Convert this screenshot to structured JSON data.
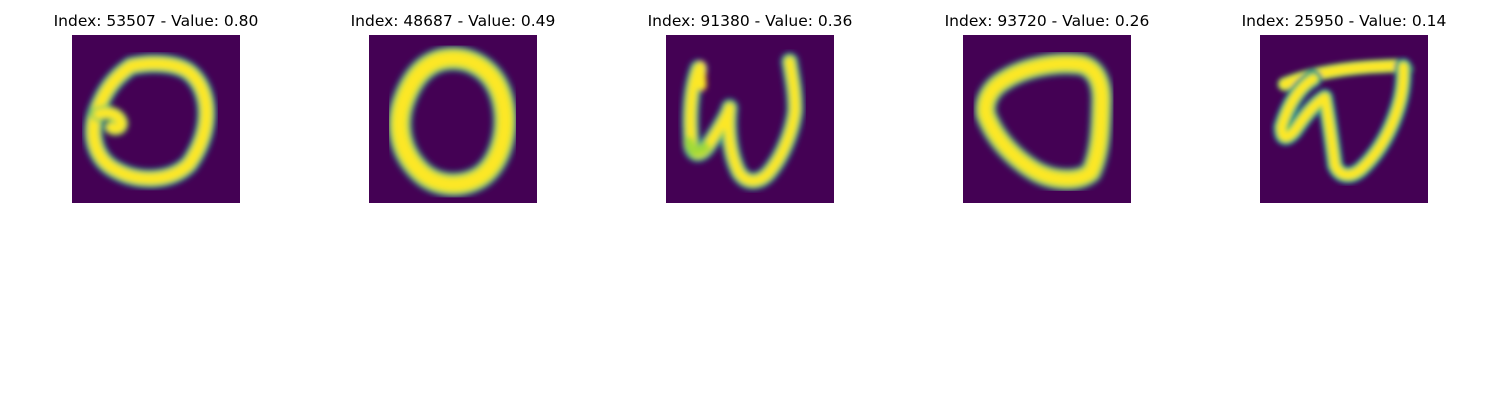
{
  "panels": [
    {
      "title": "Index: 53507 - Value: 0.80",
      "index": 53507,
      "value": 0.8,
      "glyph": "zero-with-inner-hook"
    },
    {
      "title": "Index: 48687 - Value: 0.49",
      "index": 48687,
      "value": 0.49,
      "glyph": "zero"
    },
    {
      "title": "Index: 91380 - Value: 0.36",
      "index": 91380,
      "value": 0.36,
      "glyph": "w-shape"
    },
    {
      "title": "Index: 93720 - Value: 0.26",
      "index": 93720,
      "value": 0.26,
      "glyph": "zero"
    },
    {
      "title": "Index: 25950 - Value: 0.14",
      "index": 25950,
      "value": 0.14,
      "glyph": "open-loop-shape"
    }
  ],
  "colors": {
    "background": "#440154",
    "stroke_core": "#fde725",
    "stroke_mid": "#a0da39",
    "stroke_edge": "#21918c",
    "stroke_outer": "#2c728e"
  }
}
